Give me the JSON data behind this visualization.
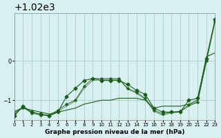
{
  "title": "Graphe pression niveau de la mer (hPa)",
  "bg_color": "#d8f0f0",
  "grid_color": "#b0d0d0",
  "line_color": "#1a5c1a",
  "xlim": [
    0,
    23
  ],
  "ylim": [
    1018.5,
    1021.2
  ],
  "yticks": [
    1019,
    1020
  ],
  "xticks": [
    0,
    1,
    2,
    3,
    4,
    5,
    6,
    7,
    8,
    9,
    10,
    11,
    12,
    13,
    14,
    15,
    16,
    17,
    18,
    19,
    20,
    21,
    22,
    23
  ],
  "series": [
    [
      1018.7,
      1018.8,
      1018.75,
      1018.7,
      1018.65,
      1018.7,
      1018.75,
      1018.8,
      1018.9,
      1018.95,
      1019.0,
      1019.0,
      1019.05,
      1019.05,
      1019.05,
      1019.0,
      1018.8,
      1018.85,
      1018.85,
      1018.85,
      1018.9,
      1019.0,
      1020.1,
      1020.2
    ],
    [
      1018.6,
      1018.85,
      1018.7,
      1018.65,
      1018.6,
      1018.7,
      1019.1,
      1019.3,
      1019.5,
      1019.55,
      1019.5,
      1019.5,
      1019.5,
      1019.4,
      1019.25,
      1019.15,
      1018.8,
      1018.7,
      1018.7,
      1018.7,
      1019.0,
      1019.05,
      1020.05,
      1021.05
    ],
    [
      1018.65,
      1018.82,
      1018.68,
      1018.62,
      1018.62,
      1018.75,
      1018.9,
      1019.0,
      1019.35,
      1019.55,
      1019.55,
      1019.55,
      1019.55,
      1019.3,
      1019.2,
      1019.05,
      1018.75,
      1018.65,
      1018.7,
      1018.72,
      1018.88,
      1018.95,
      1020.0,
      1021.0
    ],
    [
      1018.72,
      1018.82,
      1018.7,
      1018.65,
      1018.62,
      1018.72,
      1018.85,
      1018.98,
      1019.3,
      1019.5,
      1019.52,
      1019.52,
      1019.52,
      1019.28,
      1019.18,
      1019.02,
      1018.72,
      1018.62,
      1018.68,
      1018.7,
      1018.85,
      1018.95,
      1019.95,
      1021.0
    ]
  ]
}
